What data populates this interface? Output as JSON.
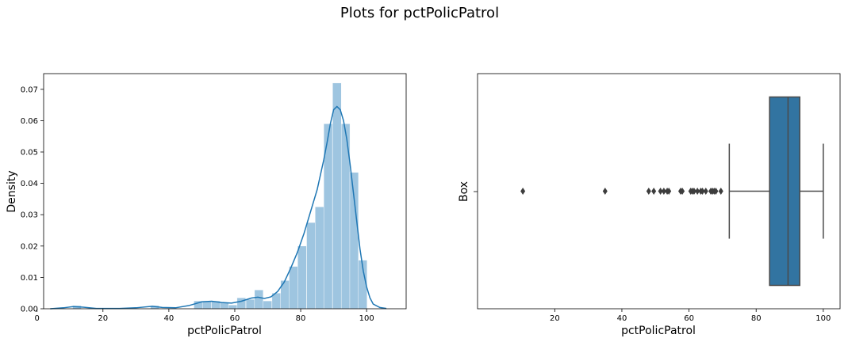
{
  "title": "Plots for pctPolicPatrol",
  "colors": {
    "hist_fill": "#9ec5e0",
    "kde_line": "#1f77b4",
    "box_fill": "#3274a1",
    "box_line": "#4a4a4a"
  },
  "chart_data": [
    {
      "type": "histogram",
      "xlabel": "pctPolicPatrol",
      "ylabel": "Density",
      "xlim": [
        2,
        112
      ],
      "ylim": [
        0,
        0.075
      ],
      "xticks": [
        0,
        20,
        40,
        60,
        80,
        100
      ],
      "yticks": [
        0.0,
        0.01,
        0.02,
        0.03,
        0.04,
        0.05,
        0.06,
        0.07
      ],
      "ytick_labels": [
        "0.00",
        "0.01",
        "0.02",
        "0.03",
        "0.04",
        "0.05",
        "0.06",
        "0.07"
      ],
      "bin_width": 2.63,
      "bins": [
        {
          "x": 10.8,
          "d": 0.001
        },
        {
          "x": 34.4,
          "d": 0.001
        },
        {
          "x": 47.6,
          "d": 0.0025
        },
        {
          "x": 50.2,
          "d": 0.0025
        },
        {
          "x": 52.9,
          "d": 0.0025
        },
        {
          "x": 55.5,
          "d": 0.002
        },
        {
          "x": 58.1,
          "d": 0.0012
        },
        {
          "x": 60.7,
          "d": 0.0035
        },
        {
          "x": 63.4,
          "d": 0.003
        },
        {
          "x": 66.0,
          "d": 0.006
        },
        {
          "x": 68.6,
          "d": 0.0025
        },
        {
          "x": 71.3,
          "d": 0.005
        },
        {
          "x": 73.9,
          "d": 0.009
        },
        {
          "x": 76.5,
          "d": 0.0135
        },
        {
          "x": 79.1,
          "d": 0.02
        },
        {
          "x": 81.8,
          "d": 0.0275
        },
        {
          "x": 84.4,
          "d": 0.0325
        },
        {
          "x": 87.0,
          "d": 0.059
        },
        {
          "x": 89.7,
          "d": 0.072
        },
        {
          "x": 92.3,
          "d": 0.059
        },
        {
          "x": 94.9,
          "d": 0.0435
        },
        {
          "x": 97.5,
          "d": 0.0155
        }
      ],
      "kde": {
        "x": [
          4,
          8,
          11,
          14,
          18,
          25,
          30,
          35,
          38,
          42,
          46,
          50,
          53,
          56,
          59,
          62,
          65,
          67,
          69,
          71,
          73,
          75,
          77,
          79,
          81,
          83,
          85,
          87,
          88,
          89,
          90,
          91,
          92,
          93,
          94,
          95,
          96,
          97,
          98,
          99,
          100,
          101,
          102,
          104,
          106
        ],
        "y": [
          0.0,
          0.0003,
          0.0007,
          0.0005,
          0.0001,
          0.0001,
          0.0003,
          0.0008,
          0.0004,
          0.0003,
          0.001,
          0.0022,
          0.0024,
          0.002,
          0.0018,
          0.0024,
          0.0034,
          0.0037,
          0.0033,
          0.0038,
          0.0055,
          0.0085,
          0.013,
          0.018,
          0.024,
          0.031,
          0.038,
          0.0475,
          0.053,
          0.059,
          0.0635,
          0.0645,
          0.0635,
          0.06,
          0.054,
          0.046,
          0.037,
          0.028,
          0.019,
          0.012,
          0.007,
          0.0035,
          0.0015,
          0.0004,
          0.0001
        ]
      }
    },
    {
      "type": "box",
      "xlabel": "pctPolicPatrol",
      "ylabel": "Box",
      "xlim": [
        -3,
        105
      ],
      "xticks": [
        20,
        40,
        60,
        80,
        100
      ],
      "q1": 84.0,
      "median": 89.5,
      "q3": 93.0,
      "whisker_low": 72.0,
      "whisker_high": 100.0,
      "outliers": [
        10.5,
        35.0,
        48.0,
        49.5,
        51.5,
        52.5,
        53.5,
        54.0,
        57.5,
        58.0,
        60.5,
        61.0,
        61.5,
        62.5,
        63.5,
        64.0,
        65.0,
        66.5,
        67.0,
        67.5,
        68.0,
        69.5
      ]
    }
  ]
}
